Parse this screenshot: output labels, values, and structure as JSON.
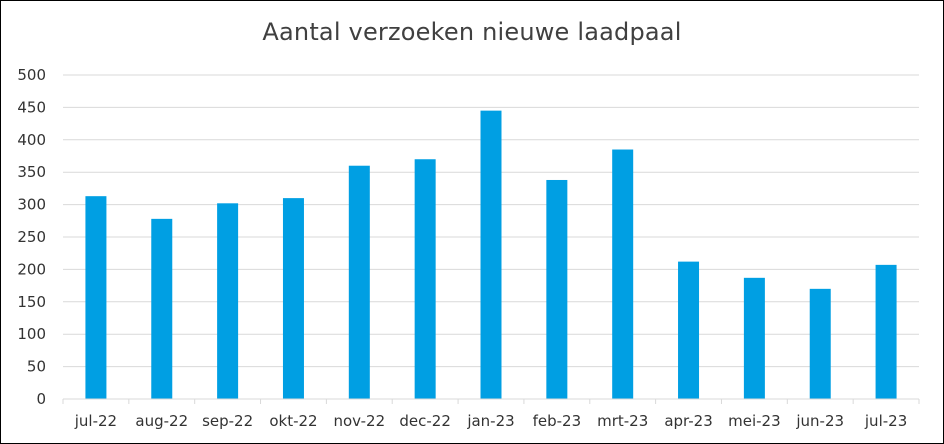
{
  "chart_data": {
    "type": "bar",
    "title": "Aantal verzoeken nieuwe laadpaal",
    "xlabel": "",
    "ylabel": "",
    "categories": [
      "jul-22",
      "aug-22",
      "sep-22",
      "okt-22",
      "nov-22",
      "dec-22",
      "jan-23",
      "feb-23",
      "mrt-23",
      "apr-23",
      "mei-23",
      "jun-23",
      "jul-23"
    ],
    "values": [
      313,
      278,
      302,
      310,
      360,
      370,
      445,
      338,
      385,
      212,
      187,
      170,
      207
    ],
    "ylim": [
      0,
      500
    ],
    "yticks": [
      0,
      50,
      100,
      150,
      200,
      250,
      300,
      350,
      400,
      450,
      500
    ],
    "grid": true,
    "legend": "none",
    "bar_color": "#009FE3",
    "grid_color": "#D9D9D9"
  }
}
